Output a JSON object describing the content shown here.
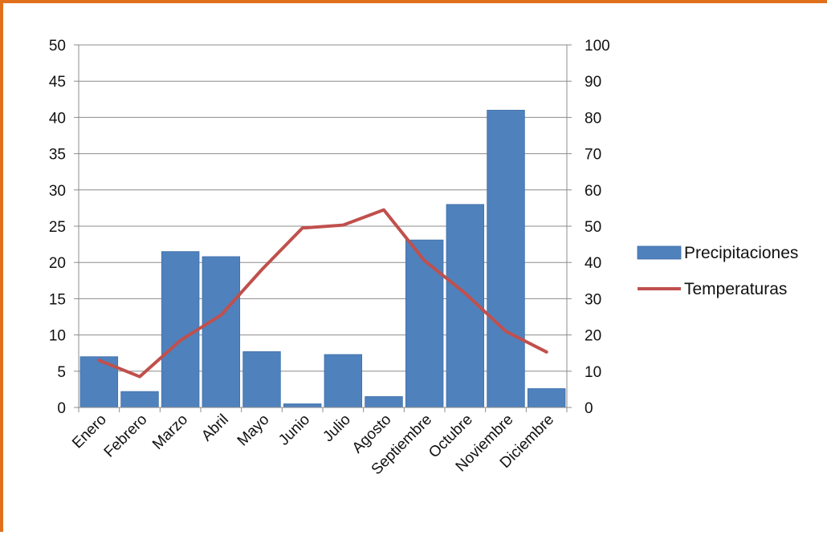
{
  "chart_data": {
    "type": "bar",
    "categories": [
      "Enero",
      "Febrero",
      "Marzo",
      "Abril",
      "Mayo",
      "Junio",
      "Julio",
      "Agosto",
      "Septiembre",
      "Octubre",
      "Noviembre",
      "Diciembre"
    ],
    "series": [
      {
        "name": "Precipitaciones",
        "type": "bar",
        "axis": "left",
        "color": "#4f81bd",
        "values": [
          7.0,
          2.2,
          21.5,
          20.8,
          7.7,
          0.5,
          7.3,
          1.5,
          23.1,
          28.0,
          41.0,
          2.6
        ]
      },
      {
        "name": "Temperaturas",
        "type": "line",
        "axis": "right",
        "color": "#c0504d",
        "values": [
          13,
          8.5,
          18.5,
          25.5,
          38,
          49.5,
          50.3,
          54.5,
          40.5,
          31.5,
          21,
          15.3
        ]
      }
    ],
    "y_left": {
      "min": 0,
      "max": 50,
      "ticks": [
        "0",
        "5",
        "10",
        "15",
        "20",
        "25",
        "30",
        "35",
        "40",
        "45",
        "50"
      ]
    },
    "y_right": {
      "min": 0,
      "max": 100,
      "ticks": [
        "0",
        "10",
        "20",
        "30",
        "40",
        "50",
        "60",
        "70",
        "80",
        "90",
        "100"
      ]
    },
    "grid": true,
    "legend_position": "right",
    "legend": [
      {
        "label": "Precipitaciones",
        "marker": "bar"
      },
      {
        "label": "Temperaturas",
        "marker": "line"
      }
    ],
    "frame_color": "#e0701c",
    "gridline_color": "#8c8c8c"
  }
}
